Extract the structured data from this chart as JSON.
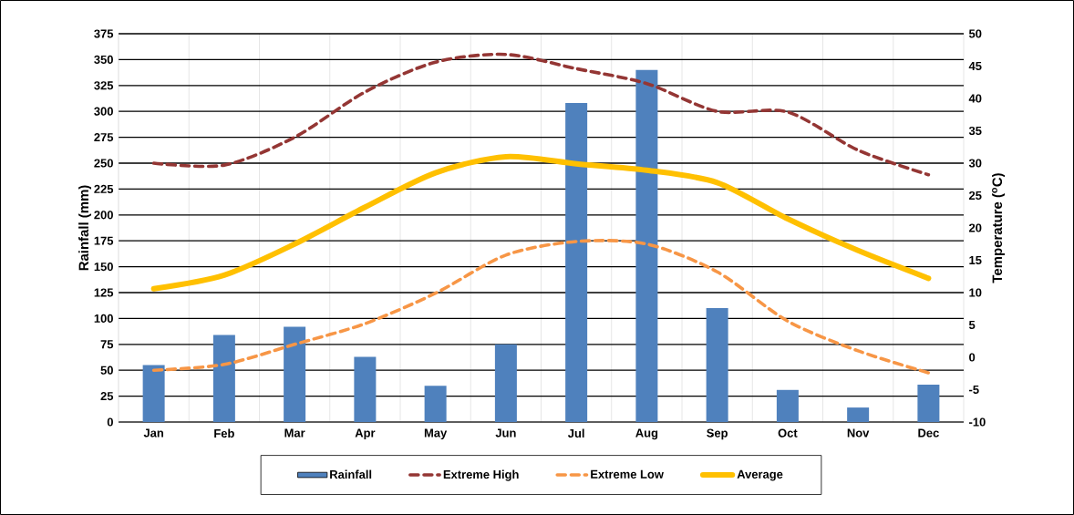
{
  "chart_data": {
    "type": "bar",
    "ylabel": "Rainfall (mm)",
    "y2label": "Temperature ($^{o}$C)",
    "categories": [
      "Jan",
      "Feb",
      "Mar",
      "Apr",
      "May",
      "Jun",
      "Jul",
      "Aug",
      "Sep",
      "Oct",
      "Nov",
      "Dec"
    ],
    "series": [
      {
        "name": "Rainfall",
        "color": "#4f81bd",
        "values": [
          55,
          84,
          92,
          63,
          35,
          75,
          308,
          340,
          110,
          31,
          14,
          36
        ]
      },
      {
        "name": "Extreme High",
        "type": "line",
        "axis": "y2",
        "line_style": "dashed",
        "color": "#943634",
        "values": [
          30,
          29.7,
          34,
          41,
          45.6,
          46.8,
          44.6,
          42.3,
          38,
          37.9,
          32,
          28.2
        ]
      },
      {
        "name": "Extreme Low",
        "type": "line",
        "axis": "y2",
        "line_style": "dashed",
        "color": "#f79646",
        "values": [
          -2,
          -1.1,
          2,
          5.2,
          9.9,
          15.8,
          17.9,
          17.5,
          13.2,
          5.6,
          1,
          -2.4
        ]
      },
      {
        "name": "Average",
        "type": "line",
        "axis": "y2",
        "line_style": "solid",
        "color": "#ffc000",
        "values": [
          10.6,
          12.7,
          17.5,
          23.2,
          28.5,
          31,
          29.9,
          28.9,
          27,
          21.4,
          16.5,
          12.2
        ]
      }
    ],
    "ylim": [
      0,
      375
    ],
    "yticks": [
      0,
      25,
      50,
      75,
      100,
      125,
      150,
      175,
      200,
      225,
      250,
      275,
      300,
      325,
      350,
      375
    ],
    "y2lim": [
      -10,
      50
    ],
    "y2ticks": [
      -10,
      -5,
      0,
      5,
      10,
      15,
      20,
      25,
      30,
      35,
      40,
      45,
      50
    ],
    "grid": true,
    "legend": "bottom"
  }
}
